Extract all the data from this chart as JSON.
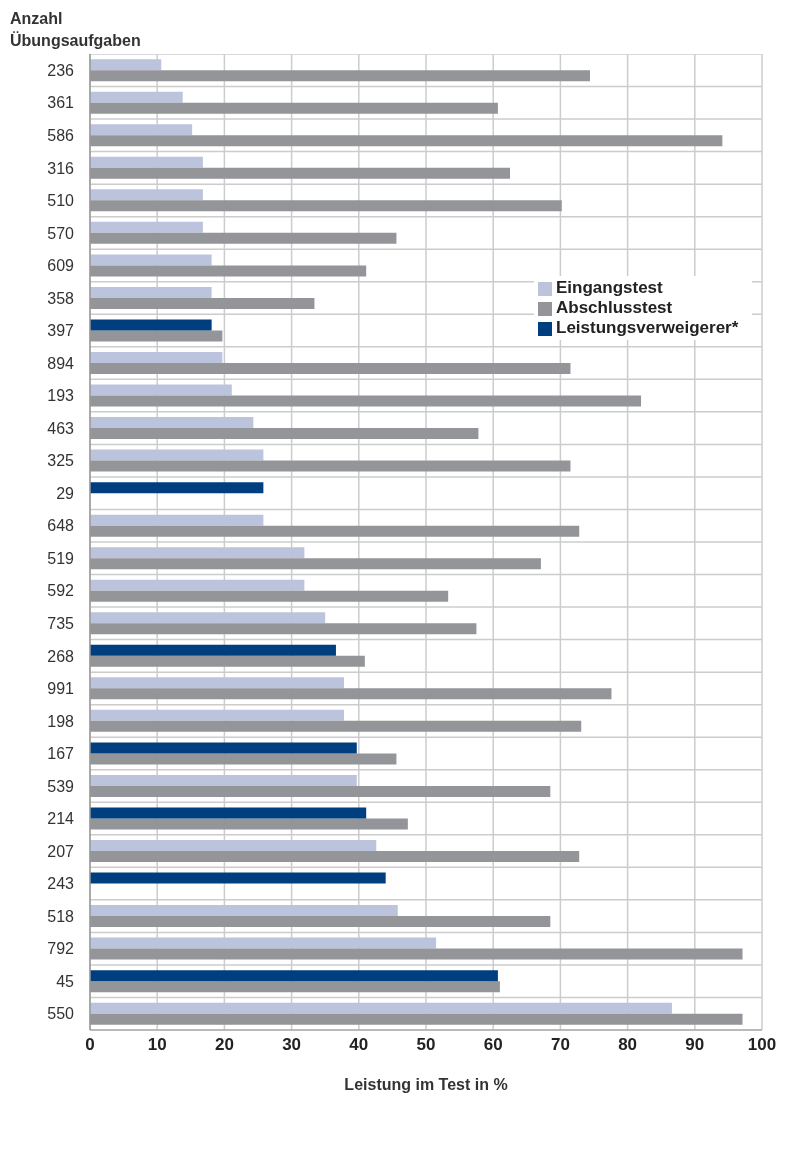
{
  "chart_data": {
    "type": "bar",
    "orientation": "horizontal",
    "ylabel": "Anzahl\nÜbungsaufgaben",
    "xlabel": "Leistung im Test in %",
    "categories": [
      "236",
      "361",
      "586",
      "316",
      "510",
      "570",
      "609",
      "358",
      "397",
      "894",
      "193",
      "463",
      "325",
      "29",
      "648",
      "519",
      "592",
      "735",
      "268",
      "991",
      "198",
      "167",
      "539",
      "214",
      "207",
      "243",
      "518",
      "792",
      "45",
      "550"
    ],
    "series": [
      {
        "name": "Eingangstest",
        "color": "#bcc3dd",
        "values": [
          10.6,
          13.8,
          15.2,
          16.8,
          16.8,
          16.8,
          18.1,
          18.1,
          null,
          19.7,
          21.1,
          24.3,
          25.8,
          null,
          25.8,
          31.9,
          31.9,
          35.0,
          null,
          37.8,
          37.8,
          null,
          39.7,
          null,
          42.6,
          null,
          45.8,
          51.5,
          null,
          86.6
        ]
      },
      {
        "name": "Abschlusstest",
        "color": "#939598",
        "values": [
          74.4,
          60.7,
          94.1,
          62.5,
          70.2,
          45.6,
          41.1,
          33.4,
          19.7,
          71.5,
          82.0,
          57.8,
          71.5,
          null,
          72.8,
          67.1,
          53.3,
          57.5,
          40.9,
          77.6,
          73.1,
          45.6,
          68.5,
          47.3,
          72.8,
          null,
          68.5,
          97.1,
          61.0,
          97.1
        ]
      },
      {
        "name": "Leistungsverweigerer*",
        "color": "#003f7f",
        "values": [
          null,
          null,
          null,
          null,
          null,
          null,
          null,
          null,
          18.1,
          null,
          null,
          null,
          null,
          25.8,
          null,
          null,
          null,
          null,
          36.6,
          null,
          null,
          39.7,
          null,
          41.1,
          null,
          44.0,
          null,
          null,
          60.7,
          null
        ]
      }
    ],
    "xlim": [
      0,
      100
    ],
    "xticks": [
      0,
      10,
      20,
      30,
      40,
      50,
      60,
      70,
      80,
      90,
      100
    ],
    "grid": true,
    "legend": "top right"
  }
}
